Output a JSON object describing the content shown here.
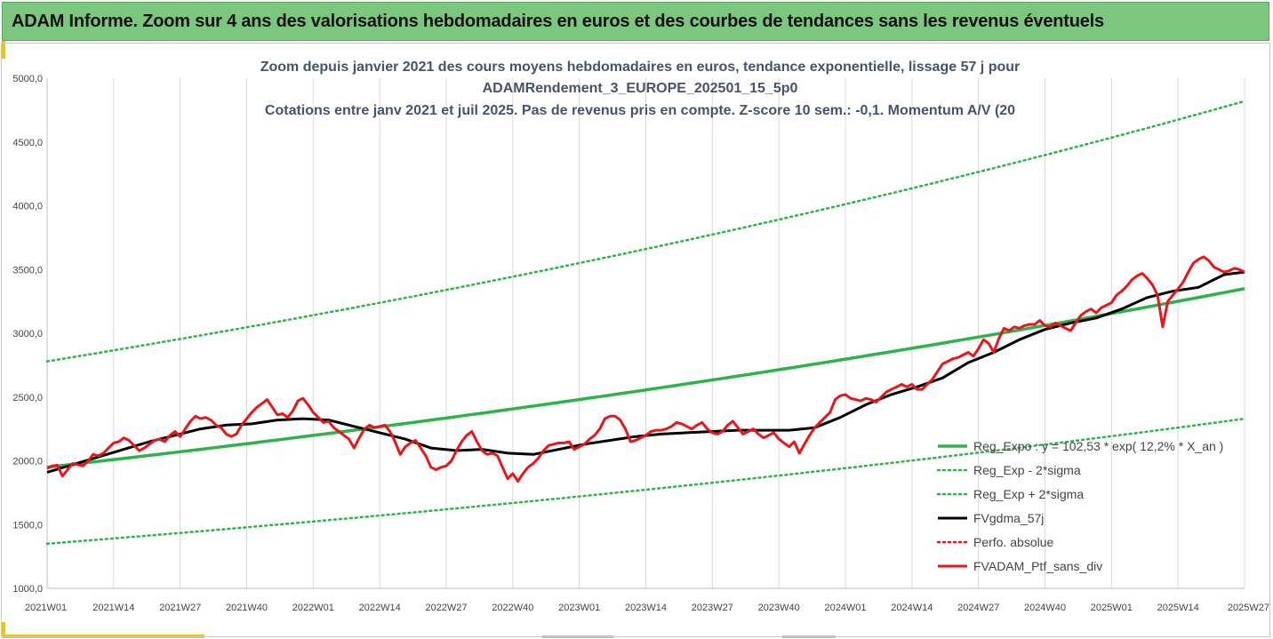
{
  "banner": {
    "title": "ADAM Informe. Zoom sur 4 ans des valorisations hebdomadaires en euros et des courbes de tendances sans les revenus éventuels"
  },
  "colors": {
    "banner_bg": "#7dc67f",
    "accent_yellow": "#f5c400",
    "trend_green": "#2db34a",
    "smooth_black": "#000000",
    "price_red": "#e8151b"
  },
  "chart_data": {
    "type": "line",
    "title_lines": [
      "Zoom depuis janvier 2021 des cours moyens hebdomadaires  en euros, tendance exponentielle, lissage 57 j pour",
      "ADAMRendement_3_EUROPE_202501_15_5p0",
      "Cotations entre janv 2021 et juil 2025. Pas de revenus pris en compte. Z-score 10 sem.: -0,1. Momentum A/V (20"
    ],
    "y_ticks": [
      "1000,0",
      "1500,0",
      "2000,0",
      "2500,0",
      "3000,0",
      "3500,0",
      "4000,0",
      "4500,0",
      "5000,0"
    ],
    "y_tick_values": [
      1000,
      1500,
      2000,
      2500,
      3000,
      3500,
      4000,
      4500,
      5000
    ],
    "ylim": [
      1000,
      5000
    ],
    "x_ticks": [
      "2021W01",
      "2021W14",
      "2021W27",
      "2021W40",
      "2022W01",
      "2022W14",
      "2022W27",
      "2022W40",
      "2023W01",
      "2023W14",
      "2023W27",
      "2023W40",
      "2024W01",
      "2024W14",
      "2024W27",
      "2024W40",
      "2025W01",
      "2025W14",
      "2025W27"
    ],
    "x_tick_weeks": [
      0,
      13,
      26,
      39,
      52,
      65,
      78,
      91,
      104,
      117,
      130,
      143,
      156,
      169,
      182,
      195,
      208,
      221,
      234
    ],
    "xlim": [
      0,
      234
    ],
    "grid": "vertical",
    "legend_position": "bottom-right",
    "legend": [
      {
        "label": "Reg_Expo : y = 102,53 * exp( 12,2% *  X_an )",
        "style": "solid-thick",
        "color": "#2db34a"
      },
      {
        "label": "Reg_Exp - 2*sigma",
        "style": "dotted",
        "color": "#2db34a"
      },
      {
        "label": "Reg_Exp + 2*sigma",
        "style": "dotted",
        "color": "#2db34a"
      },
      {
        "label": "FVgdma_57j",
        "style": "solid-thick",
        "color": "#000000"
      },
      {
        "label": "Perfo. absolue",
        "style": "dotted",
        "color": "#e8151b"
      },
      {
        "label": "FVADAM_Ptf_sans_div",
        "style": "solid-thick",
        "color": "#e8151b"
      }
    ],
    "series": [
      {
        "name": "Reg_Expo : y = 102,53 * exp( 12,2% *  X_an )",
        "x": [
          0,
          234
        ],
        "values": [
          1950,
          3350
        ],
        "curve": "exponential"
      },
      {
        "name": "Reg_Exp - 2*sigma",
        "x": [
          0,
          234
        ],
        "values": [
          1350,
          2330
        ],
        "curve": "exponential"
      },
      {
        "name": "Reg_Exp + 2*sigma",
        "x": [
          0,
          234
        ],
        "values": [
          2780,
          4820
        ],
        "curve": "exponential"
      },
      {
        "name": "FVgdma_57j",
        "x": [
          0,
          5,
          10,
          15,
          20,
          25,
          30,
          35,
          40,
          45,
          50,
          55,
          60,
          65,
          70,
          75,
          80,
          85,
          90,
          95,
          100,
          105,
          110,
          115,
          120,
          125,
          130,
          135,
          140,
          145,
          150,
          155,
          160,
          165,
          170,
          175,
          180,
          185,
          190,
          195,
          200,
          205,
          210,
          215,
          220,
          225,
          230,
          234
        ],
        "values": [
          1910,
          1970,
          2030,
          2090,
          2150,
          2200,
          2250,
          2280,
          2290,
          2320,
          2330,
          2320,
          2270,
          2220,
          2170,
          2100,
          2080,
          2090,
          2060,
          2050,
          2090,
          2130,
          2160,
          2190,
          2210,
          2220,
          2230,
          2240,
          2240,
          2240,
          2260,
          2340,
          2440,
          2520,
          2580,
          2650,
          2770,
          2850,
          2950,
          3030,
          3080,
          3120,
          3190,
          3280,
          3330,
          3360,
          3460,
          3480
        ]
      },
      {
        "name": "FVADAM_Ptf_sans_div",
        "x": [
          0,
          1,
          2,
          3,
          4,
          5,
          6,
          7,
          8,
          9,
          10,
          11,
          12,
          13,
          14,
          15,
          16,
          17,
          18,
          19,
          20,
          21,
          22,
          23,
          24,
          25,
          26,
          27,
          28,
          29,
          30,
          31,
          32,
          33,
          34,
          35,
          36,
          37,
          38,
          39,
          40,
          41,
          42,
          43,
          44,
          45,
          46,
          47,
          48,
          49,
          50,
          51,
          52,
          53,
          54,
          55,
          56,
          57,
          58,
          59,
          60,
          61,
          62,
          63,
          64,
          65,
          66,
          67,
          68,
          69,
          70,
          71,
          72,
          73,
          74,
          75,
          76,
          77,
          78,
          79,
          80,
          81,
          82,
          83,
          84,
          85,
          86,
          87,
          88,
          89,
          90,
          91,
          92,
          93,
          94,
          95,
          96,
          97,
          98,
          99,
          100,
          101,
          102,
          103,
          104,
          105,
          106,
          107,
          108,
          109,
          110,
          111,
          112,
          113,
          114,
          115,
          116,
          117,
          118,
          119,
          120,
          121,
          122,
          123,
          124,
          125,
          126,
          127,
          128,
          129,
          130,
          131,
          132,
          133,
          134,
          135,
          136,
          137,
          138,
          139,
          140,
          141,
          142,
          143,
          144,
          145,
          146,
          147,
          148,
          149,
          150,
          151,
          152,
          153,
          154,
          155,
          156,
          157,
          158,
          159,
          160,
          161,
          162,
          163,
          164,
          165,
          166,
          167,
          168,
          169,
          170,
          171,
          172,
          173,
          174,
          175,
          176,
          177,
          178,
          179,
          180,
          181,
          182,
          183,
          184,
          185,
          186,
          187,
          188,
          189,
          190,
          191,
          192,
          193,
          194,
          195,
          196,
          197,
          198,
          199,
          200,
          201,
          202,
          203,
          204,
          205,
          206,
          207,
          208,
          209,
          210,
          211,
          212,
          213,
          214,
          215,
          216,
          217,
          218,
          219,
          220,
          221,
          222,
          223,
          224,
          225,
          226,
          227,
          228,
          229,
          230,
          231,
          232,
          233,
          234
        ],
        "values": [
          1940,
          1960,
          1965,
          1880,
          1930,
          1980,
          1970,
          1960,
          2000,
          2050,
          2040,
          2060,
          2100,
          2140,
          2150,
          2180,
          2160,
          2120,
          2080,
          2100,
          2130,
          2160,
          2170,
          2150,
          2200,
          2230,
          2190,
          2250,
          2310,
          2350,
          2330,
          2340,
          2320,
          2280,
          2260,
          2210,
          2190,
          2210,
          2280,
          2330,
          2380,
          2420,
          2450,
          2480,
          2420,
          2360,
          2370,
          2340,
          2390,
          2470,
          2490,
          2440,
          2380,
          2340,
          2300,
          2310,
          2260,
          2230,
          2200,
          2170,
          2100,
          2180,
          2250,
          2280,
          2260,
          2270,
          2280,
          2230,
          2150,
          2050,
          2110,
          2140,
          2160,
          2100,
          2040,
          1950,
          1930,
          1950,
          1960,
          2000,
          2080,
          2150,
          2200,
          2230,
          2150,
          2080,
          2050,
          2060,
          2040,
          1950,
          1860,
          1900,
          1840,
          1900,
          1950,
          1980,
          2020,
          2080,
          2120,
          2130,
          2140,
          2140,
          2150,
          2090,
          2110,
          2130,
          2170,
          2200,
          2250,
          2330,
          2350,
          2350,
          2320,
          2250,
          2150,
          2160,
          2180,
          2200,
          2230,
          2240,
          2240,
          2250,
          2270,
          2300,
          2290,
          2270,
          2250,
          2280,
          2300,
          2250,
          2220,
          2210,
          2230,
          2280,
          2310,
          2260,
          2210,
          2230,
          2250,
          2210,
          2180,
          2200,
          2220,
          2170,
          2140,
          2110,
          2150,
          2060,
          2130,
          2200,
          2260,
          2300,
          2340,
          2380,
          2480,
          2510,
          2520,
          2490,
          2480,
          2470,
          2490,
          2480,
          2460,
          2500,
          2540,
          2560,
          2580,
          2600,
          2580,
          2600,
          2560,
          2560,
          2600,
          2640,
          2700,
          2760,
          2780,
          2800,
          2810,
          2830,
          2850,
          2820,
          2880,
          2950,
          2920,
          2850,
          2960,
          3040,
          3020,
          3050,
          3040,
          3060,
          3070,
          3070,
          3100,
          3060,
          3050,
          3080,
          3060,
          3040,
          3020,
          3080,
          3140,
          3170,
          3190,
          3160,
          3200,
          3220,
          3240,
          3300,
          3330,
          3370,
          3420,
          3450,
          3470,
          3430,
          3380,
          3300,
          3050,
          3250,
          3300,
          3350,
          3400,
          3480,
          3550,
          3580,
          3600,
          3570,
          3520,
          3500,
          3480,
          3490,
          3510,
          3500,
          3480
        ]
      }
    ]
  }
}
